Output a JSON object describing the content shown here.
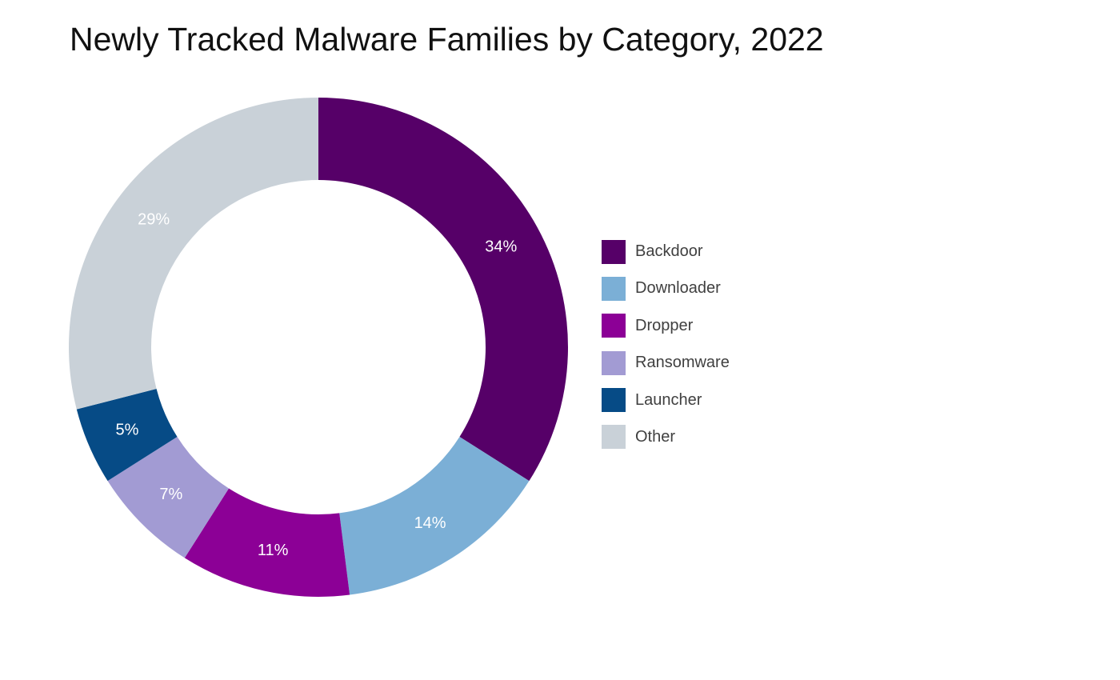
{
  "chart_data": {
    "type": "pie",
    "title": "Newly Tracked Malware Families by Category, 2022",
    "categories": [
      "Backdoor",
      "Downloader",
      "Dropper",
      "Ransomware",
      "Launcher",
      "Other"
    ],
    "values": [
      34,
      14,
      11,
      7,
      5,
      29
    ],
    "data_labels": [
      "34%",
      "14%",
      "11%",
      "7%",
      "5%",
      "29%"
    ],
    "colors": [
      "#560068",
      "#7bafd6",
      "#8c0096",
      "#a29bd3",
      "#064b86",
      "#c9d1d8"
    ],
    "donut": true,
    "legend_position": "right"
  }
}
